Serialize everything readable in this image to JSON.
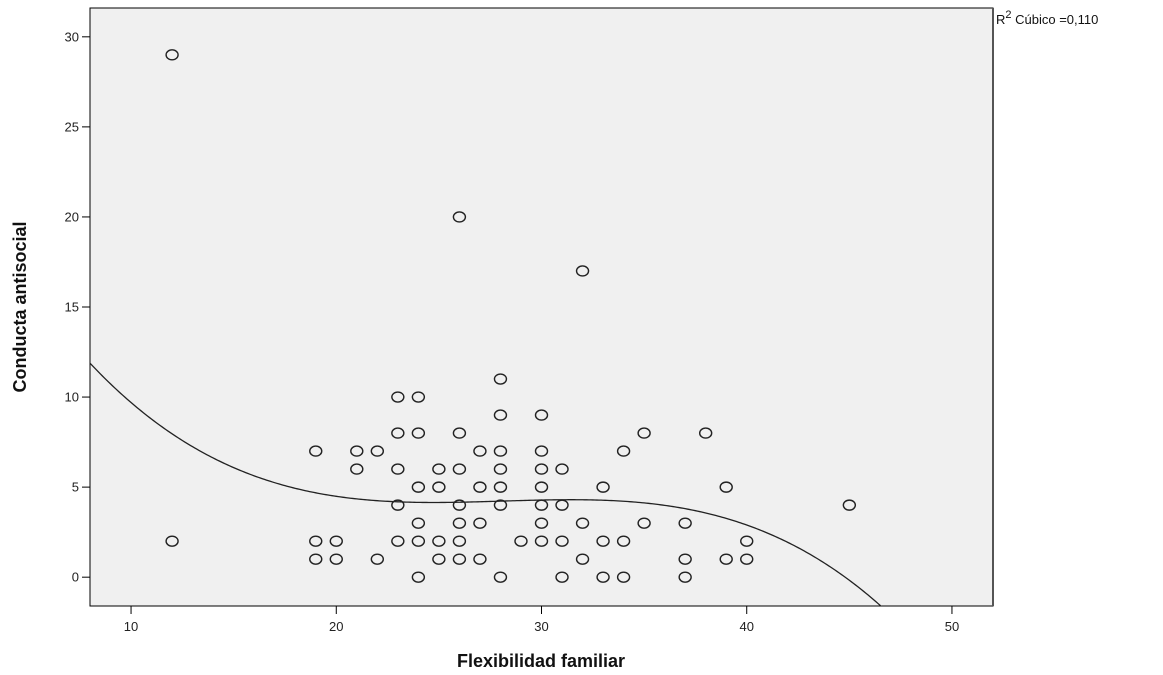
{
  "chart_data": {
    "type": "scatter",
    "xlabel": "Flexibilidad familiar",
    "ylabel": "Conducta antisocial",
    "xlim": [
      8,
      52
    ],
    "ylim": [
      -1.6,
      31.6
    ],
    "xticks": [
      10,
      20,
      30,
      40,
      50
    ],
    "yticks": [
      0,
      5,
      10,
      15,
      20,
      25,
      30
    ],
    "grid": false,
    "annotation": {
      "prefix": "R",
      "superscript": "2",
      "text": " Cúbico =0,110"
    },
    "fit_curve": {
      "type": "cubic",
      "coefficients_descending": [
        -0.00103,
        0.0868,
        -2.4037,
        26.084
      ]
    },
    "points": [
      {
        "x": 12,
        "y": 29
      },
      {
        "x": 12,
        "y": 2
      },
      {
        "x": 26,
        "y": 20
      },
      {
        "x": 32,
        "y": 17
      },
      {
        "x": 28,
        "y": 11
      },
      {
        "x": 23,
        "y": 10
      },
      {
        "x": 24,
        "y": 10
      },
      {
        "x": 28,
        "y": 9
      },
      {
        "x": 30,
        "y": 9
      },
      {
        "x": 23,
        "y": 8
      },
      {
        "x": 24,
        "y": 8
      },
      {
        "x": 26,
        "y": 8
      },
      {
        "x": 35,
        "y": 8
      },
      {
        "x": 38,
        "y": 8
      },
      {
        "x": 19,
        "y": 7
      },
      {
        "x": 21,
        "y": 7
      },
      {
        "x": 22,
        "y": 7
      },
      {
        "x": 27,
        "y": 7
      },
      {
        "x": 28,
        "y": 7
      },
      {
        "x": 30,
        "y": 7
      },
      {
        "x": 34,
        "y": 7
      },
      {
        "x": 21,
        "y": 6
      },
      {
        "x": 23,
        "y": 6
      },
      {
        "x": 25,
        "y": 6
      },
      {
        "x": 26,
        "y": 6
      },
      {
        "x": 28,
        "y": 6
      },
      {
        "x": 30,
        "y": 6
      },
      {
        "x": 31,
        "y": 6
      },
      {
        "x": 24,
        "y": 5
      },
      {
        "x": 25,
        "y": 5
      },
      {
        "x": 27,
        "y": 5
      },
      {
        "x": 28,
        "y": 5
      },
      {
        "x": 30,
        "y": 5
      },
      {
        "x": 33,
        "y": 5
      },
      {
        "x": 39,
        "y": 5
      },
      {
        "x": 23,
        "y": 4
      },
      {
        "x": 26,
        "y": 4
      },
      {
        "x": 28,
        "y": 4
      },
      {
        "x": 30,
        "y": 4
      },
      {
        "x": 31,
        "y": 4
      },
      {
        "x": 45,
        "y": 4
      },
      {
        "x": 24,
        "y": 3
      },
      {
        "x": 26,
        "y": 3
      },
      {
        "x": 27,
        "y": 3
      },
      {
        "x": 30,
        "y": 3
      },
      {
        "x": 32,
        "y": 3
      },
      {
        "x": 35,
        "y": 3
      },
      {
        "x": 37,
        "y": 3
      },
      {
        "x": 19,
        "y": 2
      },
      {
        "x": 20,
        "y": 2
      },
      {
        "x": 23,
        "y": 2
      },
      {
        "x": 24,
        "y": 2
      },
      {
        "x": 25,
        "y": 2
      },
      {
        "x": 26,
        "y": 2
      },
      {
        "x": 29,
        "y": 2
      },
      {
        "x": 30,
        "y": 2
      },
      {
        "x": 31,
        "y": 2
      },
      {
        "x": 33,
        "y": 2
      },
      {
        "x": 34,
        "y": 2
      },
      {
        "x": 40,
        "y": 2
      },
      {
        "x": 19,
        "y": 1
      },
      {
        "x": 20,
        "y": 1
      },
      {
        "x": 22,
        "y": 1
      },
      {
        "x": 25,
        "y": 1
      },
      {
        "x": 26,
        "y": 1
      },
      {
        "x": 27,
        "y": 1
      },
      {
        "x": 32,
        "y": 1
      },
      {
        "x": 37,
        "y": 1
      },
      {
        "x": 39,
        "y": 1
      },
      {
        "x": 40,
        "y": 1
      },
      {
        "x": 24,
        "y": 0
      },
      {
        "x": 28,
        "y": 0
      },
      {
        "x": 31,
        "y": 0
      },
      {
        "x": 33,
        "y": 0
      },
      {
        "x": 34,
        "y": 0
      },
      {
        "x": 37,
        "y": 0
      }
    ]
  }
}
